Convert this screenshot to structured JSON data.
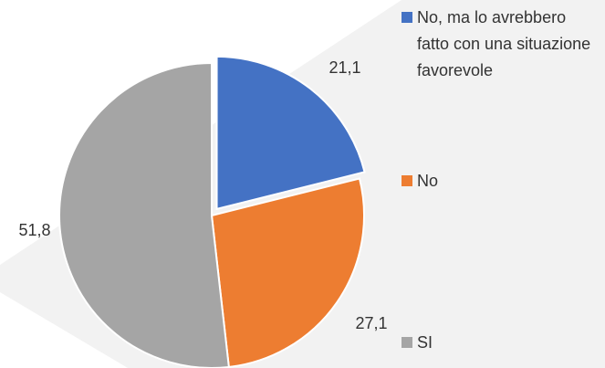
{
  "chart_data": {
    "type": "pie",
    "categories": [
      "No, ma lo avrebbero fatto con una situazione favorevole",
      "No",
      "SI"
    ],
    "values": [
      21.1,
      27.1,
      51.8
    ],
    "value_labels": [
      "21,1",
      "27,1",
      "51,8"
    ],
    "colors": [
      "#4472c4",
      "#ed7d31",
      "#a5a5a5"
    ],
    "legend": "right"
  }
}
